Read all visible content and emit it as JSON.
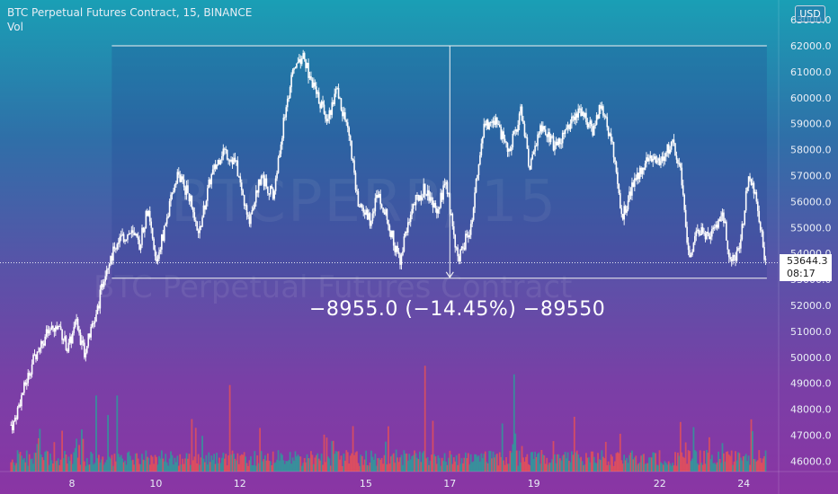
{
  "legend": {
    "title": "BTC Perpetual Futures Contract, 15, BINANCE",
    "indicator": "Vol"
  },
  "watermark": {
    "symbol": "BTCPERP, 15",
    "description": "BTC Perpetual Futures Contract"
  },
  "currency_button": "USD",
  "last_price": {
    "value": "53644.3",
    "countdown": "08:17"
  },
  "measure_label": "−8955.0 (−14.45%) −89550",
  "colors": {
    "up": "#26a69a",
    "down": "#ef5350",
    "candle": "#ffffff",
    "line": "#f2f2f2"
  },
  "chart_data": {
    "type": "candlestick",
    "ylim": [
      45750,
      62600
    ],
    "y_ticks": [
      "46000.0",
      "47000.0",
      "48000.0",
      "49000.0",
      "50000.0",
      "51000.0",
      "52000.0",
      "53000.0",
      "54000.0",
      "55000.0",
      "56000.0",
      "57000.0",
      "58000.0",
      "59000.0",
      "60000.0",
      "61000.0",
      "62000.0",
      "63000.0"
    ],
    "x_ticks": [
      "8",
      "10",
      "12",
      "15",
      "17",
      "19",
      "22",
      "24"
    ],
    "x_tick_days": [
      8,
      10,
      12,
      15,
      17,
      19,
      22,
      24
    ],
    "xlim_days": [
      6.55,
      24.8
    ],
    "price_path": [
      [
        6.6,
        47400
      ],
      [
        6.8,
        48500
      ],
      [
        7.1,
        50000
      ],
      [
        7.4,
        50900
      ],
      [
        7.7,
        51200
      ],
      [
        7.9,
        50300
      ],
      [
        8.1,
        51300
      ],
      [
        8.3,
        50200
      ],
      [
        8.6,
        51800
      ],
      [
        8.8,
        53400
      ],
      [
        9.1,
        54500
      ],
      [
        9.4,
        54800
      ],
      [
        9.6,
        54300
      ],
      [
        9.8,
        55700
      ],
      [
        10.0,
        53600
      ],
      [
        10.3,
        55600
      ],
      [
        10.5,
        57100
      ],
      [
        10.8,
        56200
      ],
      [
        11.0,
        54600
      ],
      [
        11.3,
        56900
      ],
      [
        11.6,
        58000
      ],
      [
        11.9,
        57500
      ],
      [
        12.2,
        55200
      ],
      [
        12.5,
        57000
      ],
      [
        12.8,
        56200
      ],
      [
        13.1,
        59700
      ],
      [
        13.3,
        61200
      ],
      [
        13.5,
        61600
      ],
      [
        13.8,
        60200
      ],
      [
        14.1,
        59200
      ],
      [
        14.3,
        60300
      ],
      [
        14.6,
        58600
      ],
      [
        14.8,
        56000
      ],
      [
        15.1,
        55300
      ],
      [
        15.3,
        56400
      ],
      [
        15.6,
        54800
      ],
      [
        15.8,
        53700
      ],
      [
        16.1,
        55800
      ],
      [
        16.4,
        56500
      ],
      [
        16.7,
        55600
      ],
      [
        16.9,
        56800
      ],
      [
        17.2,
        53700
      ],
      [
        17.5,
        55100
      ],
      [
        17.8,
        58800
      ],
      [
        18.1,
        59200
      ],
      [
        18.4,
        57800
      ],
      [
        18.7,
        59500
      ],
      [
        18.9,
        57300
      ],
      [
        19.2,
        59000
      ],
      [
        19.5,
        58100
      ],
      [
        19.8,
        58800
      ],
      [
        20.1,
        59600
      ],
      [
        20.4,
        58700
      ],
      [
        20.6,
        59800
      ],
      [
        20.9,
        57900
      ],
      [
        21.1,
        55400
      ],
      [
        21.4,
        56800
      ],
      [
        21.7,
        57700
      ],
      [
        22.0,
        57500
      ],
      [
        22.3,
        58300
      ],
      [
        22.5,
        57100
      ],
      [
        22.7,
        53600
      ],
      [
        22.9,
        54900
      ],
      [
        23.2,
        54700
      ],
      [
        23.5,
        55500
      ],
      [
        23.7,
        53600
      ],
      [
        23.9,
        54100
      ],
      [
        24.1,
        56800
      ],
      [
        24.3,
        56200
      ],
      [
        24.5,
        53700
      ]
    ],
    "measure": {
      "start_price": 62000.0,
      "end_price": 53045.0,
      "start_day": 8.95,
      "end_day": 24.55,
      "arrow_day": 17.0
    },
    "last_price": 53644.3,
    "series": [
      {
        "name": "BTC Perpetual Futures Contract",
        "kind": "candles"
      },
      {
        "name": "Vol",
        "kind": "volume"
      }
    ]
  }
}
